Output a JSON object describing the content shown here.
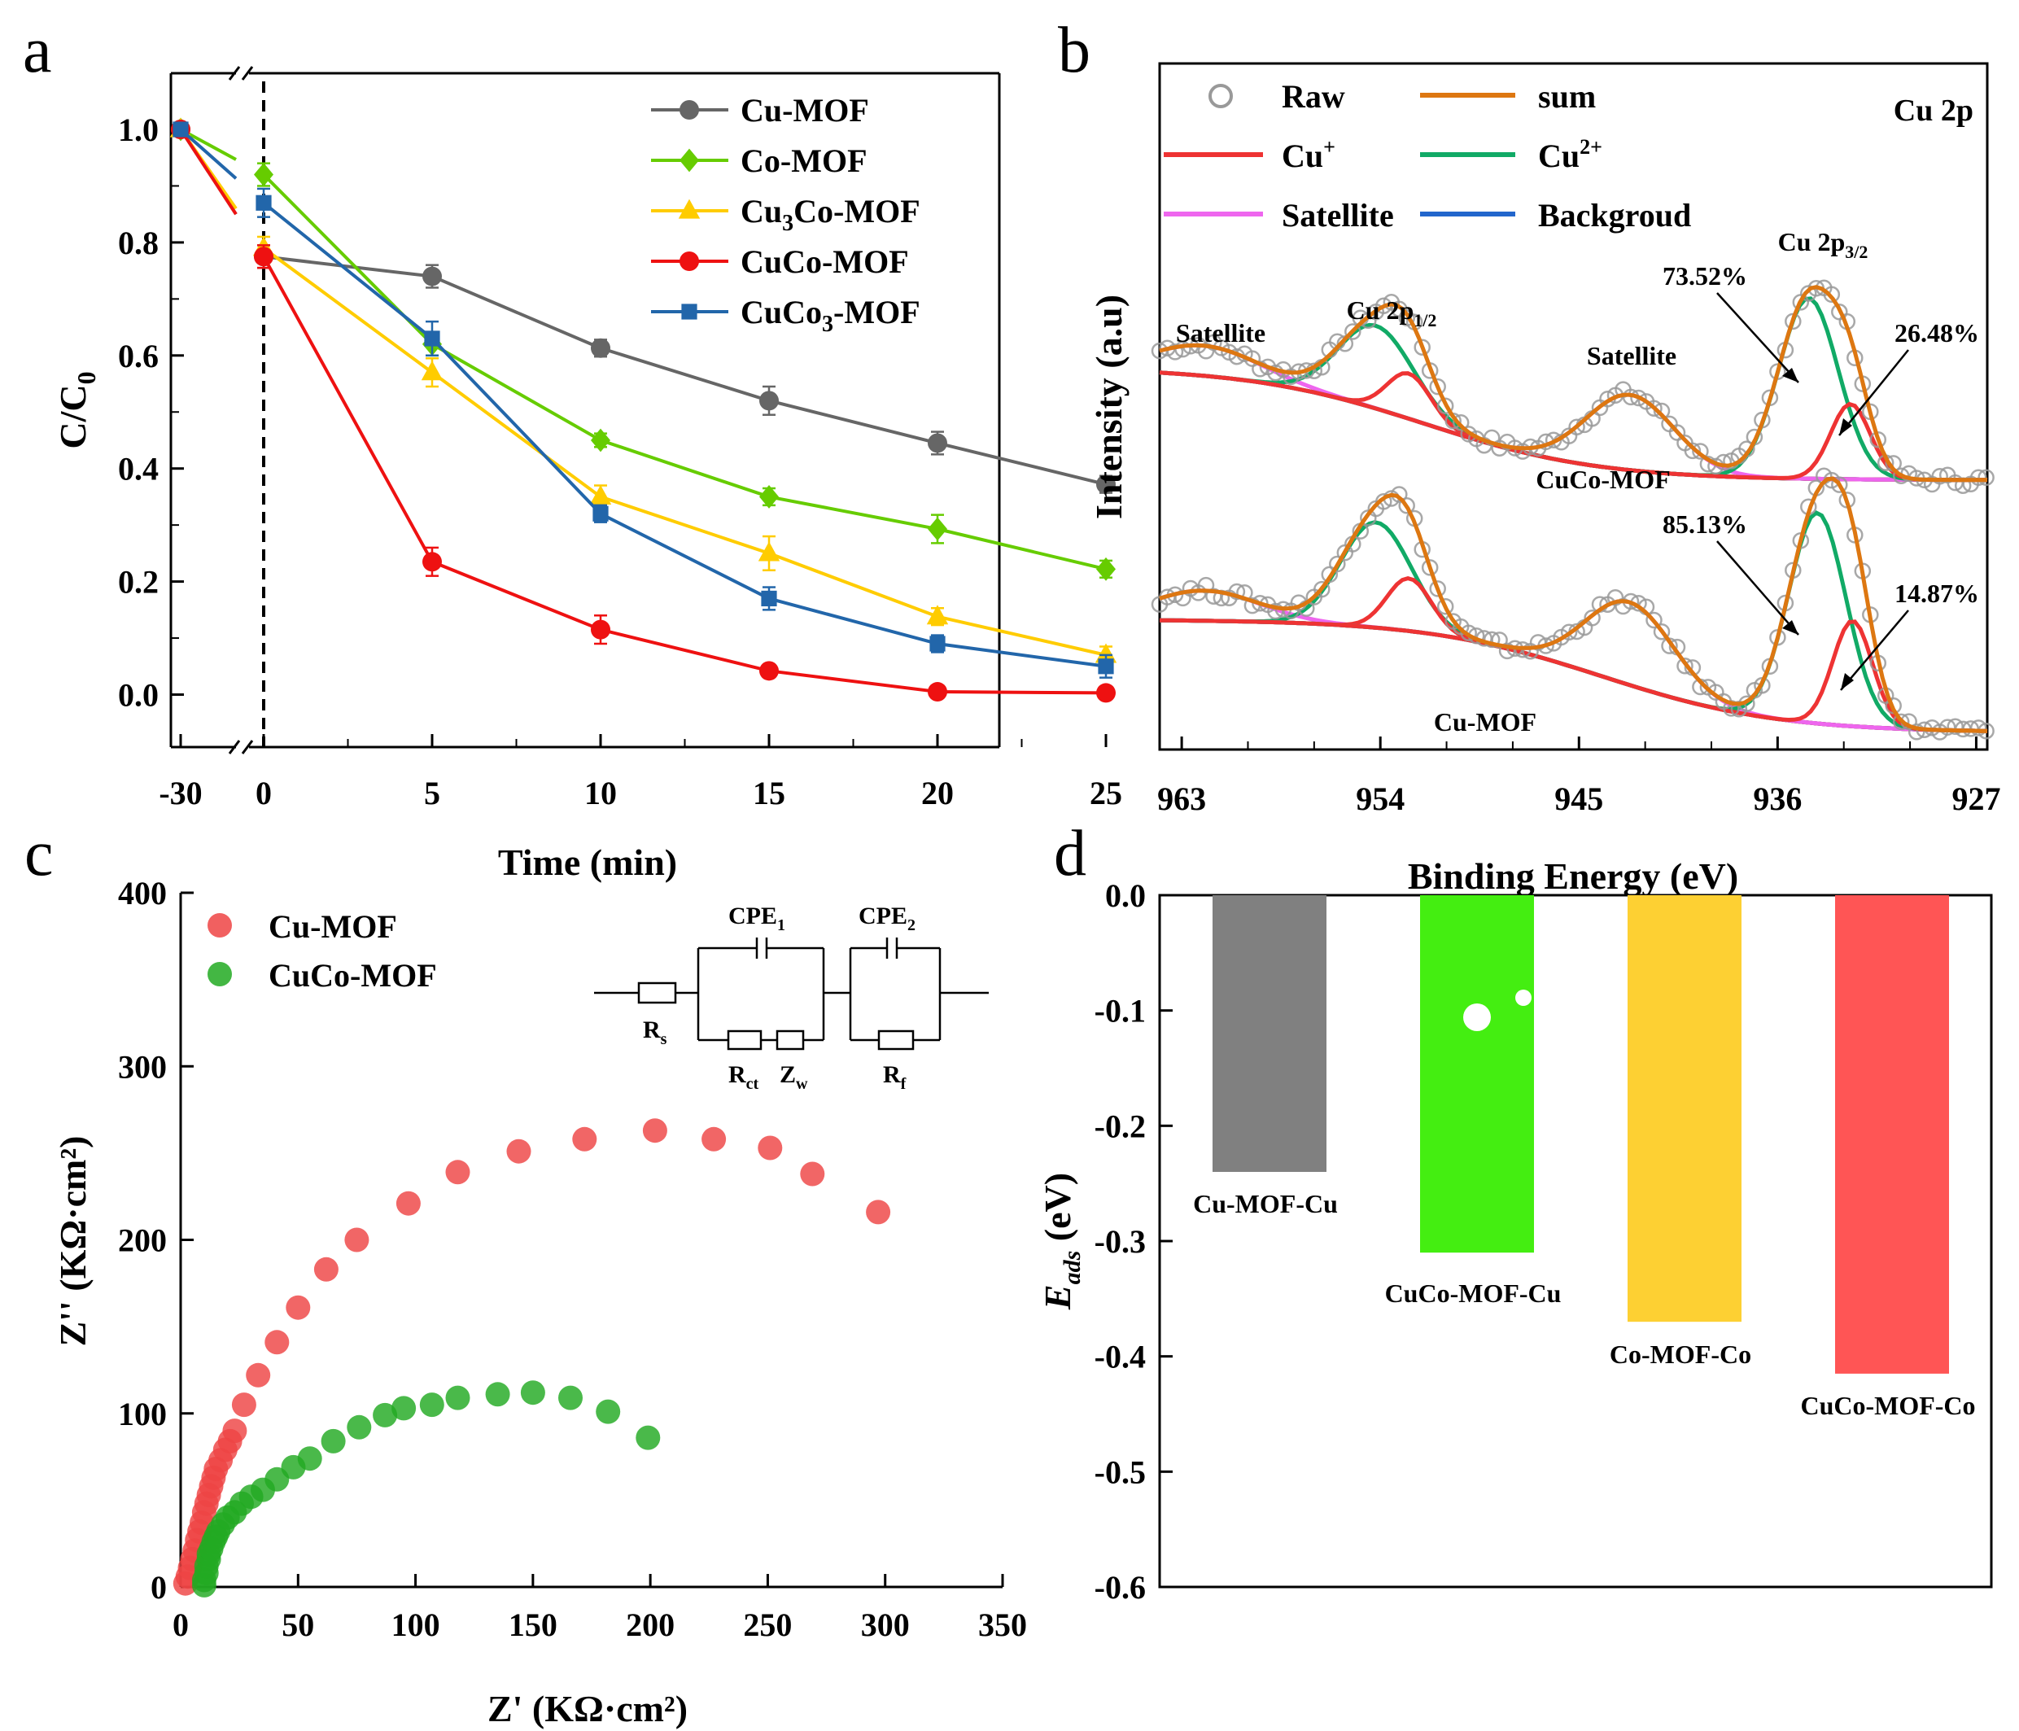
{
  "panels": {
    "a": {
      "letter": "a",
      "xlabel": "Time (min)",
      "ylabel": "C/C",
      "ylabel_sub": "0",
      "x_ticks": [
        "-30",
        "0",
        "5",
        "10",
        "15",
        "20",
        "25"
      ],
      "y_ticks": [
        "0.0",
        "0.2",
        "0.4",
        "0.6",
        "0.8",
        "1.0"
      ],
      "legend": [
        {
          "name": "Cu-MOF",
          "sub": "",
          "tail": ""
        },
        {
          "name": "Co-MOF",
          "sub": "",
          "tail": ""
        },
        {
          "name": "Cu",
          "sub": "3",
          "tail": "Co-MOF"
        },
        {
          "name": "CuCo-MOF",
          "sub": "",
          "tail": ""
        },
        {
          "name": "CuCo",
          "sub": "3",
          "tail": "-MOF"
        }
      ]
    },
    "b": {
      "letter": "b",
      "xlabel": "Binding Energy (eV)",
      "ylabel": "Intensity (a.u)",
      "x_ticks": [
        "963",
        "954",
        "945",
        "936",
        "927"
      ],
      "legend": {
        "raw": "Raw",
        "sum": "sum",
        "cu_plus": "Cu",
        "cu_plus_sup": "+",
        "cu_2plus": "Cu",
        "cu_2plus_sup": "2+",
        "satellite": "Satellite",
        "background": "Backgroud"
      },
      "title": "Cu 2p",
      "annotations": {
        "cuco_label": "CuCo-MOF",
        "cu_label": "Cu-MOF",
        "satellite_1": "Satellite",
        "satellite_2": "Satellite",
        "p12": "Cu 2p",
        "p12_sub": "1/2",
        "p32": "Cu 2p",
        "p32_sub": "3/2",
        "cuco_cu2": "73.52%",
        "cuco_cu1": "26.48%",
        "cu_cu2": "85.13%",
        "cu_cu1": "14.87%"
      }
    },
    "c": {
      "letter": "c",
      "xlabel": "Z' (KΩ·cm²)",
      "ylabel": "Z'' (KΩ·cm²)",
      "x_ticks": [
        "0",
        "50",
        "100",
        "150",
        "200",
        "250",
        "300",
        "350"
      ],
      "y_ticks": [
        "0",
        "100",
        "200",
        "300",
        "400"
      ],
      "legend": [
        "Cu-MOF",
        "CuCo-MOF"
      ],
      "circuit": {
        "rs": "R",
        "rs_sub": "s",
        "rct": "R",
        "rct_sub": "ct",
        "zw": "Z",
        "zw_sub": "w",
        "rf": "R",
        "rf_sub": "f",
        "cpe1": "CPE",
        "cpe1_sub": "1",
        "cpe2": "CPE",
        "cpe2_sub": "2"
      }
    },
    "d": {
      "letter": "d",
      "ylabel": "E",
      "ylabel_sub": "ads",
      "ylabel_tail": " (eV)",
      "y_ticks": [
        "0.0",
        "-0.1",
        "-0.2",
        "-0.3",
        "-0.4",
        "-0.5",
        "-0.6"
      ]
    }
  },
  "chart_data": [
    {
      "panel": "a",
      "type": "line",
      "title": "",
      "xlabel": "Time (min)",
      "ylabel": "C/C0",
      "x": [
        -30,
        0,
        5,
        10,
        15,
        20,
        25
      ],
      "ylim": [
        -0.1,
        1.1
      ],
      "series": [
        {
          "name": "Cu-MOF",
          "color": "#666666",
          "marker": "circle",
          "values": [
            1.0,
            0.775,
            0.74,
            0.613,
            0.52,
            0.445,
            0.372
          ],
          "errors": [
            0,
            0.02,
            0.02,
            0.015,
            0.025,
            0.02,
            0.015
          ]
        },
        {
          "name": "Co-MOF",
          "color": "#66cc00",
          "marker": "diamond",
          "values": [
            1.0,
            0.92,
            0.62,
            0.45,
            0.35,
            0.293,
            0.222
          ],
          "errors": [
            0,
            0.02,
            0.02,
            0.012,
            0.015,
            0.025,
            0.015
          ]
        },
        {
          "name": "Cu3Co-MOF",
          "color": "#ffcc00",
          "marker": "triangle",
          "values": [
            1.0,
            0.79,
            0.57,
            0.35,
            0.25,
            0.138,
            0.07
          ],
          "errors": [
            0,
            0.02,
            0.025,
            0.02,
            0.03,
            0.015,
            0.015
          ]
        },
        {
          "name": "CuCo-MOF",
          "color": "#ee1111",
          "marker": "circle",
          "values": [
            1.0,
            0.775,
            0.235,
            0.115,
            0.042,
            0.005,
            0.003
          ],
          "errors": [
            0,
            0.02,
            0.025,
            0.025,
            0.01,
            0.005,
            0.005
          ]
        },
        {
          "name": "CuCo3-MOF",
          "color": "#2266aa",
          "marker": "square",
          "values": [
            1.0,
            0.87,
            0.63,
            0.32,
            0.17,
            0.09,
            0.05
          ],
          "errors": [
            0,
            0.025,
            0.03,
            0.015,
            0.02,
            0.015,
            0.02
          ]
        }
      ]
    },
    {
      "panel": "b",
      "type": "line",
      "title": "Cu 2p",
      "xlabel": "Binding Energy (eV)",
      "ylabel": "Intensity (a.u)",
      "xlim": [
        964,
        926.5
      ],
      "series_colors": {
        "raw": "#999999",
        "sum": "#dd7711",
        "cu_plus": "#ee3333",
        "cu_2plus": "#11aa66",
        "satellite": "#ee66ee",
        "background": "#2266cc"
      },
      "spectra": [
        {
          "name": "CuCo-MOF",
          "offset": 1.0,
          "background": {
            "left": 0.75,
            "right": 0.0,
            "center": 952,
            "width": 4
          },
          "peaks": [
            {
              "component": "satellite",
              "center": 962,
              "height": 0.2,
              "width": 2.5
            },
            {
              "component": "cu_2plus",
              "center": 954.2,
              "height": 0.55,
              "width": 1.7
            },
            {
              "component": "cu_plus",
              "center": 952.7,
              "height": 0.3,
              "width": 1.0
            },
            {
              "component": "satellite",
              "center": 942.7,
              "height": 0.5,
              "width": 2.0
            },
            {
              "component": "cu_2plus",
              "center": 934.6,
              "height": 1.2,
              "width": 1.35
            },
            {
              "component": "cu_plus",
              "center": 932.7,
              "height": 0.5,
              "width": 0.9
            }
          ]
        },
        {
          "name": "Cu-MOF",
          "offset": 0.0,
          "background": {
            "left": 0.75,
            "right": 0.0,
            "center": 944,
            "width": 4
          },
          "peaks": [
            {
              "component": "satellite",
              "center": 962,
              "height": 0.2,
              "width": 2.5
            },
            {
              "component": "cu_2plus",
              "center": 954.2,
              "height": 0.7,
              "width": 1.6
            },
            {
              "component": "cu_plus",
              "center": 952.7,
              "height": 0.35,
              "width": 1.0
            },
            {
              "component": "satellite",
              "center": 942.7,
              "height": 0.55,
              "width": 2.0
            },
            {
              "component": "cu_2plus",
              "center": 934.2,
              "height": 1.4,
              "width": 1.3
            },
            {
              "component": "cu_plus",
              "center": 932.6,
              "height": 0.7,
              "width": 0.9
            }
          ]
        }
      ],
      "labels": {
        "cu_2p_1_2": 954,
        "cu_2p_3_2": 934,
        "cuco_cu2_percent": 73.52,
        "cuco_cu1_percent": 26.48,
        "cu_cu2_percent": 85.13,
        "cu_cu1_percent": 14.87
      }
    },
    {
      "panel": "c",
      "type": "scatter",
      "title": "",
      "xlabel": "Z' (KΩ·cm²)",
      "ylabel": "Z'' (KΩ·cm²)",
      "xlim": [
        0,
        350
      ],
      "ylim": [
        0,
        400
      ],
      "series": [
        {
          "name": "Cu-MOF",
          "color": "#ee4444",
          "points": [
            [
              2,
              2
            ],
            [
              3,
              6
            ],
            [
              4,
              11
            ],
            [
              5,
              16
            ],
            [
              6,
              21
            ],
            [
              7,
              27
            ],
            [
              8,
              32
            ],
            [
              9,
              37
            ],
            [
              10,
              43
            ],
            [
              11,
              48
            ],
            [
              12,
              53
            ],
            [
              13,
              58
            ],
            [
              14,
              63
            ],
            [
              15,
              68
            ],
            [
              17,
              73
            ],
            [
              19,
              79
            ],
            [
              21,
              84
            ],
            [
              23,
              90
            ],
            [
              27,
              105
            ],
            [
              33,
              122
            ],
            [
              41,
              141
            ],
            [
              50,
              161
            ],
            [
              62,
              183
            ],
            [
              75,
              200
            ],
            [
              97,
              221
            ],
            [
              118,
              239
            ],
            [
              144,
              251
            ],
            [
              172,
              258
            ],
            [
              202,
              263
            ],
            [
              227,
              258
            ],
            [
              251,
              253
            ],
            [
              269,
              238
            ],
            [
              297,
              216
            ]
          ]
        },
        {
          "name": "CuCo-MOF",
          "color": "#22aa22",
          "points": [
            [
              10,
              1
            ],
            [
              10,
              4
            ],
            [
              11,
              8
            ],
            [
              11,
              12
            ],
            [
              12,
              16
            ],
            [
              12,
              19
            ],
            [
              13,
              22
            ],
            [
              14,
              26
            ],
            [
              15,
              29
            ],
            [
              16,
              32
            ],
            [
              18,
              36
            ],
            [
              20,
              40
            ],
            [
              23,
              43
            ],
            [
              26,
              48
            ],
            [
              30,
              52
            ],
            [
              35,
              56
            ],
            [
              41,
              62
            ],
            [
              48,
              69
            ],
            [
              55,
              74
            ],
            [
              65,
              84
            ],
            [
              76,
              92
            ],
            [
              87,
              99
            ],
            [
              95,
              103
            ],
            [
              107,
              105
            ],
            [
              118,
              109
            ],
            [
              135,
              111
            ],
            [
              150,
              112
            ],
            [
              166,
              109
            ],
            [
              182,
              101
            ],
            [
              199,
              86
            ]
          ]
        }
      ]
    },
    {
      "panel": "d",
      "type": "bar",
      "title": "",
      "xlabel": "",
      "ylabel": "Eads (eV)",
      "ylim": [
        -0.6,
        0
      ],
      "categories": [
        "Cu-MOF-Cu",
        "CuCo-MOF-Cu",
        "Co-MOF-Co",
        "CuCo-MOF-Co"
      ],
      "values": [
        -0.24,
        -0.31,
        -0.37,
        -0.415
      ],
      "colors": [
        "#808080",
        "#44ee11",
        "#fdd033",
        "#ff5555"
      ]
    }
  ]
}
